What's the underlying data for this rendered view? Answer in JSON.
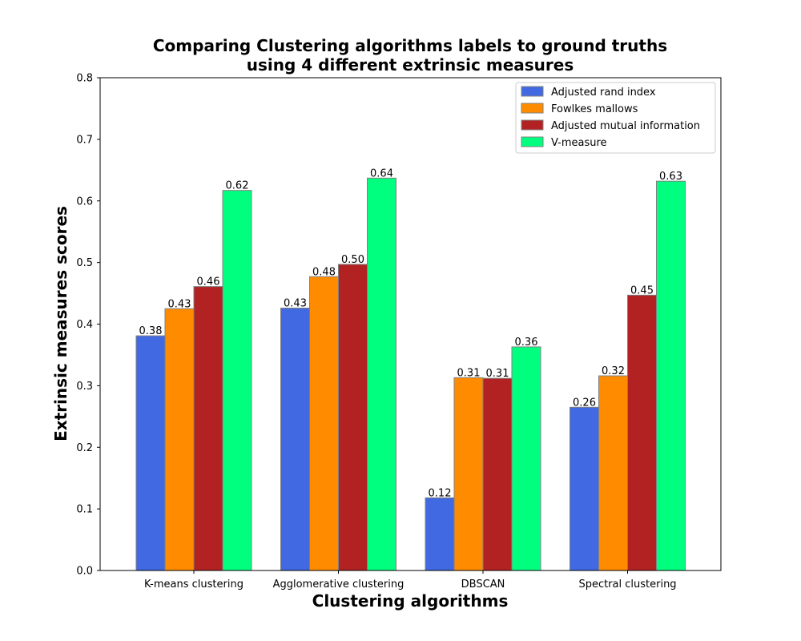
{
  "chart_data": {
    "type": "bar",
    "title_line1": "Comparing Clustering algorithms labels to ground truths",
    "title_line2": "using 4 different extrinsic measures",
    "xlabel": "Clustering algorithms",
    "ylabel": "Extrinsic measures scores",
    "categories": [
      "K-means clustering",
      "Agglomerative clustering",
      "DBSCAN",
      "Spectral clustering"
    ],
    "series": [
      {
        "name": "Adjusted rand index",
        "color": "#4169e1",
        "values": [
          0.381,
          0.426,
          0.118,
          0.265
        ],
        "labels": [
          "0.38",
          "0.43",
          "0.12",
          "0.26"
        ]
      },
      {
        "name": "Fowlkes mallows",
        "color": "#ff8c00",
        "values": [
          0.425,
          0.477,
          0.313,
          0.316
        ],
        "labels": [
          "0.43",
          "0.48",
          "0.31",
          "0.32"
        ]
      },
      {
        "name": "Adjusted mutual information",
        "color": "#b22222",
        "values": [
          0.461,
          0.497,
          0.312,
          0.447
        ],
        "labels": [
          "0.46",
          "0.50",
          "0.31",
          "0.45"
        ]
      },
      {
        "name": "V-measure",
        "color": "#00ff7f",
        "values": [
          0.617,
          0.637,
          0.363,
          0.632
        ],
        "labels": [
          "0.62",
          "0.64",
          "0.36",
          "0.63"
        ]
      }
    ],
    "ylim": [
      0,
      0.8
    ],
    "yticks": [
      "0.0",
      "0.1",
      "0.2",
      "0.3",
      "0.4",
      "0.5",
      "0.6",
      "0.7",
      "0.8"
    ],
    "grid": false,
    "legend_position": "top-right"
  }
}
